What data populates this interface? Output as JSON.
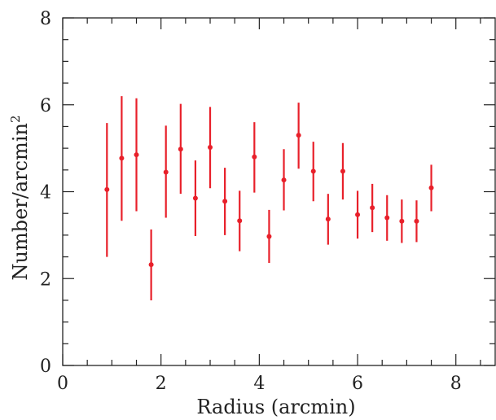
{
  "chart_data": {
    "type": "scatter",
    "xlabel": "Radius (arcmin)",
    "ylabel": "Number/arcmin",
    "ylabel_superscript": "2",
    "xlim": [
      0,
      8.8
    ],
    "ylim": [
      0,
      8
    ],
    "x_ticks": [
      "0",
      "2",
      "4",
      "6",
      "8"
    ],
    "y_ticks": [
      "0",
      "2",
      "4",
      "6",
      "8"
    ],
    "marker_color": "#e8202a",
    "grid": false,
    "points": [
      {
        "x": 0.9,
        "y": 4.05,
        "ylo": 2.5,
        "yhi": 5.58
      },
      {
        "x": 1.2,
        "y": 4.77,
        "ylo": 3.33,
        "yhi": 6.2
      },
      {
        "x": 1.5,
        "y": 4.85,
        "ylo": 3.55,
        "yhi": 6.15
      },
      {
        "x": 1.8,
        "y": 2.32,
        "ylo": 1.5,
        "yhi": 3.13
      },
      {
        "x": 2.1,
        "y": 4.45,
        "ylo": 3.4,
        "yhi": 5.52
      },
      {
        "x": 2.4,
        "y": 4.98,
        "ylo": 3.95,
        "yhi": 6.02
      },
      {
        "x": 2.7,
        "y": 3.85,
        "ylo": 2.98,
        "yhi": 4.72
      },
      {
        "x": 3.0,
        "y": 5.02,
        "ylo": 4.08,
        "yhi": 5.95
      },
      {
        "x": 3.3,
        "y": 3.78,
        "ylo": 3.0,
        "yhi": 4.55
      },
      {
        "x": 3.6,
        "y": 3.33,
        "ylo": 2.63,
        "yhi": 4.02
      },
      {
        "x": 3.9,
        "y": 4.8,
        "ylo": 3.98,
        "yhi": 5.6
      },
      {
        "x": 4.2,
        "y": 2.97,
        "ylo": 2.36,
        "yhi": 3.58
      },
      {
        "x": 4.5,
        "y": 4.27,
        "ylo": 3.57,
        "yhi": 4.98
      },
      {
        "x": 4.8,
        "y": 5.3,
        "ylo": 4.53,
        "yhi": 6.05
      },
      {
        "x": 5.1,
        "y": 4.47,
        "ylo": 3.78,
        "yhi": 5.15
      },
      {
        "x": 5.4,
        "y": 3.37,
        "ylo": 2.78,
        "yhi": 3.95
      },
      {
        "x": 5.7,
        "y": 4.47,
        "ylo": 3.82,
        "yhi": 5.12
      },
      {
        "x": 6.0,
        "y": 3.47,
        "ylo": 2.92,
        "yhi": 4.02
      },
      {
        "x": 6.3,
        "y": 3.63,
        "ylo": 3.07,
        "yhi": 4.18
      },
      {
        "x": 6.6,
        "y": 3.4,
        "ylo": 2.87,
        "yhi": 3.92
      },
      {
        "x": 6.9,
        "y": 3.32,
        "ylo": 2.82,
        "yhi": 3.82
      },
      {
        "x": 7.2,
        "y": 3.32,
        "ylo": 2.84,
        "yhi": 3.8
      },
      {
        "x": 7.5,
        "y": 4.09,
        "ylo": 3.55,
        "yhi": 4.62
      }
    ]
  }
}
